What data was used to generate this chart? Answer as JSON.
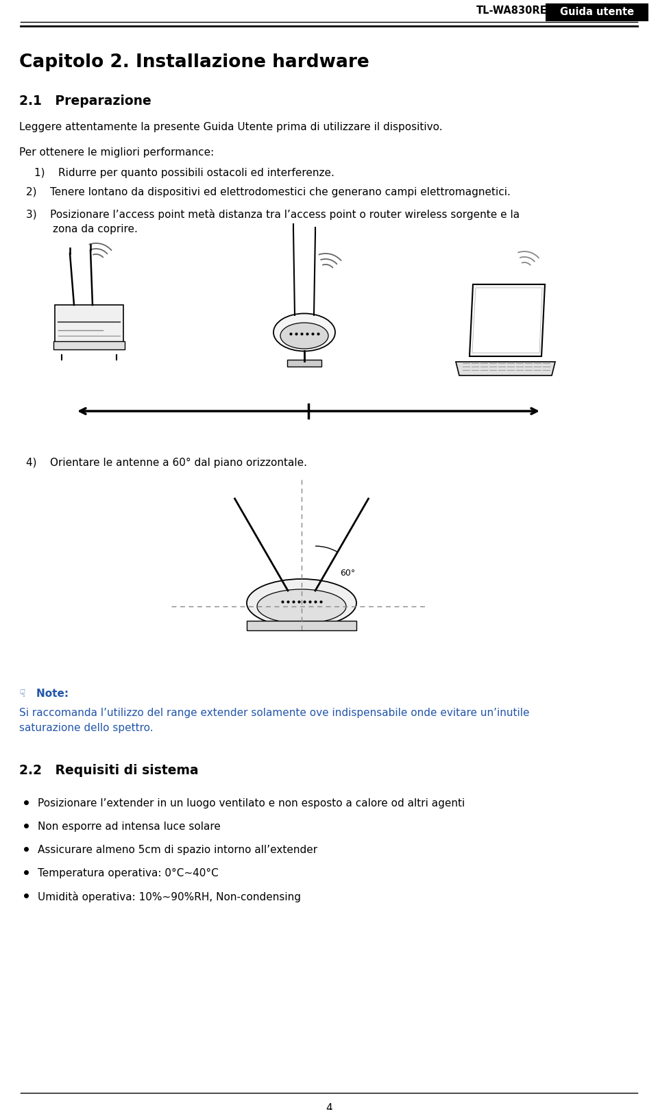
{
  "bg_color": "#ffffff",
  "header_text": "TL-WA830RE",
  "header_badge": "Guida utente",
  "chapter_title": "Capitolo 2. Installazione hardware",
  "section_title": "2.1   Preparazione",
  "intro_line": "Leggere attentamente la presente Guida Utente prima di utilizzare il dispositivo.",
  "perf_label": "Per ottenere le migliori performance:",
  "item1": "1)    Ridurre per quanto possibili ostacoli ed interferenze.",
  "item2": "2)    Tenere lontano da dispositivi ed elettrodomestici che generano campi elettromagnetici.",
  "item3a": "3)    Posizionare l’access point metà distanza tra l’access point o router wireless sorgente e la",
  "item3b": "        zona da coprire.",
  "item4": "4)    Orientare le antenne a 60° dal piano orizzontale.",
  "note_label": "☟   Note:",
  "note_line1": "Si raccomanda l’utilizzo del range extender solamente ove indispensabile onde evitare un’inutile",
  "note_line2": "saturazione dello spettro.",
  "section2_title": "2.2   Requisiti di sistema",
  "bullet_items": [
    "Posizionare l’extender in un luogo ventilato e non esposto a calore od altri agenti",
    "Non esporre ad intensa luce solare",
    "Assicurare almeno 5cm di spazio intorno all’extender",
    "Temperatura operativa: 0°C~40°C",
    "Umidità operativa: 10%~90%RH, Non-condensing"
  ],
  "footer_number": "4",
  "blue_color": "#2255aa",
  "dark_blue": "#1a3f8f"
}
